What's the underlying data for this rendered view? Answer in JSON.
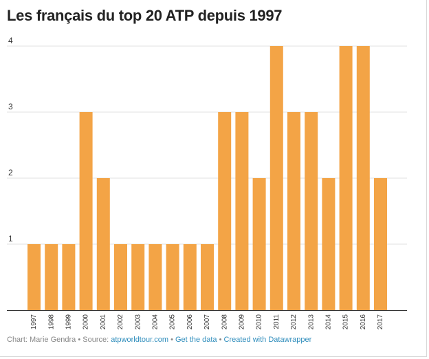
{
  "chart_data": {
    "type": "bar",
    "title": "Les français du top 20 ATP depuis 1997",
    "categories": [
      "1997",
      "1998",
      "1999",
      "2000",
      "2001",
      "2002",
      "2003",
      "2004",
      "2005",
      "2006",
      "2007",
      "2008",
      "2009",
      "2010",
      "2011",
      "2012",
      "2013",
      "2014",
      "2015",
      "2016",
      "2017"
    ],
    "values": [
      1,
      1,
      1,
      3,
      2,
      1,
      1,
      1,
      1,
      1,
      1,
      3,
      3,
      2,
      4,
      3,
      3,
      2,
      4,
      4,
      2
    ],
    "yticks": [
      1,
      2,
      3,
      4
    ],
    "ylim": [
      0,
      4
    ],
    "xlabel": "",
    "ylabel": "",
    "grid": true,
    "bar_color": "#f3a446"
  },
  "footer": {
    "chart_by": "Chart: Marie Gendra",
    "source_label": "Source:",
    "source_link": "atpworldtour.com",
    "get_data": "Get the data",
    "created_with": "Created with Datawrapper",
    "separator": "•"
  }
}
